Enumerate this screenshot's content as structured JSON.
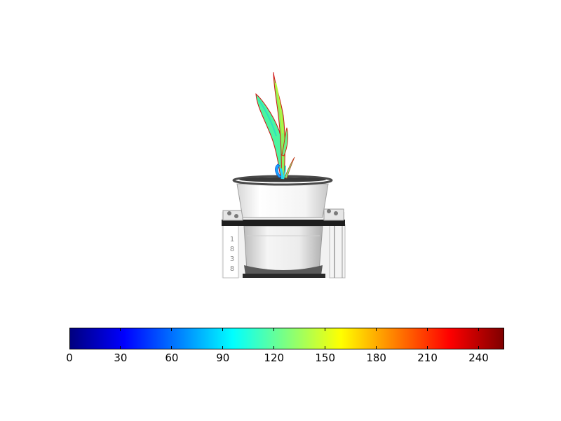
{
  "colorbar": {
    "colormap": "jet",
    "min": 0,
    "max": 255,
    "ticks": [
      "0",
      "30",
      "60",
      "90",
      "120",
      "150",
      "180",
      "210",
      "240"
    ],
    "tick_values": [
      0,
      30,
      60,
      90,
      120,
      150,
      180,
      210,
      240
    ],
    "colors": [
      "#00007f",
      "#0000ff",
      "#007fff",
      "#00ffff",
      "#7fff7f",
      "#ffff00",
      "#ff7f00",
      "#ff0000",
      "#7f0000"
    ]
  },
  "pot_label": [
    "1",
    "8",
    "3",
    "8"
  ]
}
